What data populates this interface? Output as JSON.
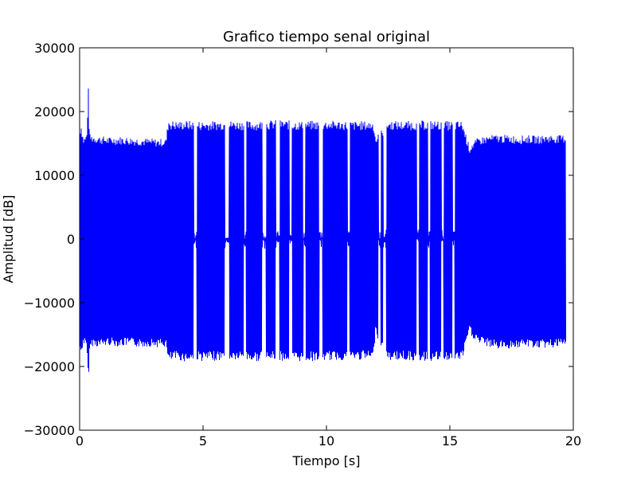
{
  "chart_data": {
    "type": "line",
    "title": "Grafico tiempo senal original",
    "xlabel": "Tiempo [s]",
    "ylabel": "Amplitud [dB]",
    "xlim": [
      0,
      20
    ],
    "ylim": [
      -30000,
      30000
    ],
    "xticks": [
      0,
      5,
      10,
      15,
      20
    ],
    "yticks": [
      -30000,
      -20000,
      -10000,
      0,
      10000,
      20000,
      30000
    ],
    "xtick_labels": [
      "0",
      "5",
      "10",
      "15",
      "20"
    ],
    "ytick_labels": [
      "−30000",
      "−20000",
      "−10000",
      "0",
      "10000",
      "20000",
      "30000"
    ],
    "grid": false,
    "legend": "none",
    "series": [
      {
        "color": "#0000ff",
        "envelope": {
          "x": [
            0.0,
            0.05,
            0.15,
            0.25,
            0.3,
            0.35,
            0.4,
            0.5,
            0.8,
            1.2,
            1.6,
            2.0,
            2.4,
            2.8,
            3.2,
            3.5,
            3.6,
            3.7,
            4.0,
            4.3,
            4.6,
            4.75,
            5.0,
            6.0,
            7.0,
            8.0,
            9.0,
            10.0,
            11.0,
            11.9,
            12.0,
            12.1,
            12.2,
            12.3,
            12.4,
            12.5,
            13.0,
            14.0,
            15.0,
            15.5,
            15.8,
            15.9,
            16.2,
            16.6,
            17.0,
            17.4,
            17.8,
            18.2,
            18.6,
            19.0,
            19.4,
            19.7
          ],
          "upper": [
            16500,
            18500,
            16000,
            16300,
            17000,
            24500,
            16500,
            16400,
            16200,
            16000,
            16100,
            16000,
            15900,
            15800,
            15700,
            15800,
            19000,
            18600,
            18500,
            18600,
            18500,
            18500,
            18500,
            18600,
            18500,
            18700,
            18500,
            18600,
            18500,
            18500,
            16000,
            16500,
            17000,
            17500,
            18500,
            18600,
            18500,
            18600,
            18500,
            18500,
            14500,
            15200,
            16000,
            16300,
            16400,
            16300,
            16200,
            16300,
            16200,
            16400,
            16300,
            16400
          ],
          "lower": [
            -17000,
            -18500,
            -16500,
            -17000,
            -18000,
            -23000,
            -18000,
            -16800,
            -17000,
            -16700,
            -16900,
            -16800,
            -17000,
            -16900,
            -17000,
            -17000,
            -19500,
            -19200,
            -19000,
            -19300,
            -19100,
            -19000,
            -19200,
            -19000,
            -19200,
            -19100,
            -19200,
            -19100,
            -19000,
            -19000,
            -14000,
            -16000,
            -17000,
            -17500,
            -19200,
            -19100,
            -19000,
            -19200,
            -19100,
            -19000,
            -14500,
            -15500,
            -16500,
            -17000,
            -17300,
            -17200,
            -17100,
            -17000,
            -17200,
            -17100,
            -17000,
            -17100
          ]
        },
        "gaps": [
          [
            4.62,
            4.75
          ],
          [
            5.88,
            6.05
          ],
          [
            6.65,
            6.75
          ],
          [
            7.4,
            7.55
          ],
          [
            7.95,
            8.1
          ],
          [
            8.5,
            8.6
          ],
          [
            9.05,
            9.15
          ],
          [
            9.7,
            9.85
          ],
          [
            10.85,
            10.95
          ],
          [
            12.1,
            12.2
          ],
          [
            12.3,
            12.42
          ],
          [
            13.65,
            13.75
          ],
          [
            14.1,
            14.2
          ],
          [
            14.65,
            14.75
          ],
          [
            15.1,
            15.2
          ]
        ]
      }
    ]
  }
}
